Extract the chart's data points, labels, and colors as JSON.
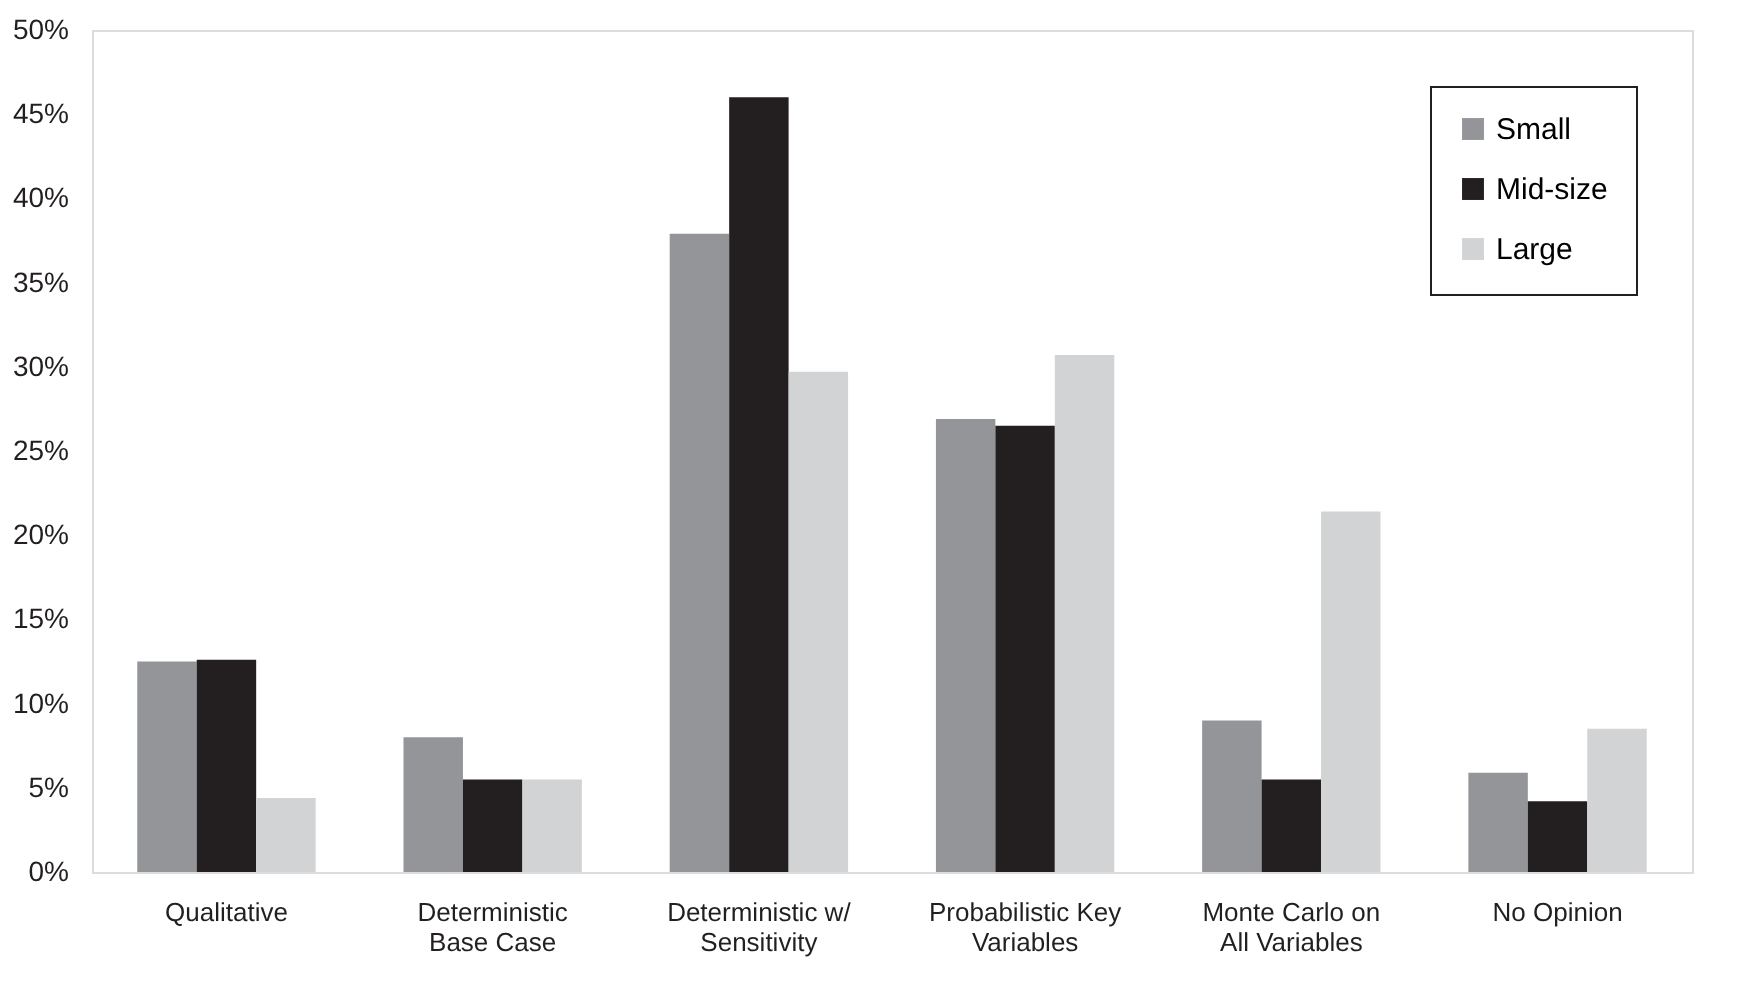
{
  "chart_data": {
    "type": "bar",
    "categories": [
      "Qualitative",
      "Deterministic\nBase Case",
      "Deterministic w/\nSensitivity",
      "Probabilistic Key\nVariables",
      "Monte Carlo on\nAll Variables",
      "No Opinion"
    ],
    "series": [
      {
        "name": "Small",
        "color": "#939598",
        "values": [
          12.5,
          8.0,
          37.9,
          26.9,
          9.0,
          5.9
        ]
      },
      {
        "name": "Mid-size",
        "color": "#231f20",
        "values": [
          12.6,
          5.5,
          46.0,
          26.5,
          5.5,
          4.2
        ]
      },
      {
        "name": "Large",
        "color": "#d1d3d4",
        "values": [
          4.4,
          5.5,
          29.7,
          30.7,
          21.4,
          8.5
        ]
      }
    ],
    "ylim": [
      0,
      50
    ],
    "yticks": [
      {
        "value": 0,
        "label": "0%"
      },
      {
        "value": 5,
        "label": "5%"
      },
      {
        "value": 10,
        "label": "10%"
      },
      {
        "value": 15,
        "label": "15%"
      },
      {
        "value": 20,
        "label": "20%"
      },
      {
        "value": 25,
        "label": "25%"
      },
      {
        "value": 30,
        "label": "30%"
      },
      {
        "value": 35,
        "label": "35%"
      },
      {
        "value": 40,
        "label": "40%"
      },
      {
        "value": 45,
        "label": "45%"
      },
      {
        "value": 50,
        "label": "50%"
      }
    ],
    "grid": false,
    "legend": "top right"
  }
}
